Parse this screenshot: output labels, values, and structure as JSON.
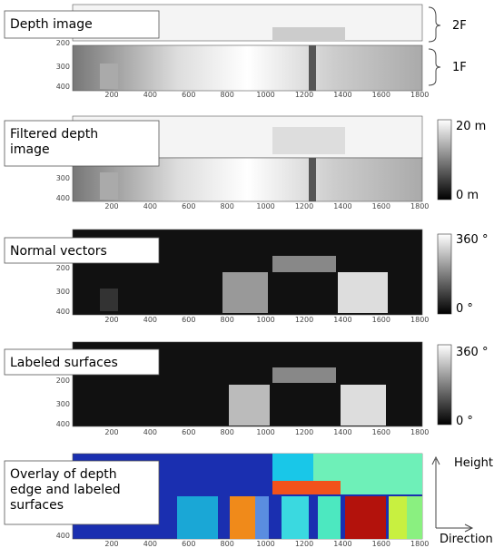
{
  "panels": [
    {
      "label": [
        "Depth image"
      ],
      "y_ticks": [
        "200",
        "300",
        "400"
      ]
    },
    {
      "label": [
        "Filtered depth",
        "image"
      ],
      "y_ticks": [
        "300",
        "400"
      ],
      "colorbar": {
        "top": "20 m",
        "bottom": "0 m"
      }
    },
    {
      "label": [
        "Normal vectors"
      ],
      "y_ticks": [
        "200",
        "300",
        "400"
      ],
      "colorbar": {
        "top": "360 °",
        "bottom": "0 °"
      }
    },
    {
      "label": [
        "Labeled surfaces"
      ],
      "y_ticks": [
        "200",
        "300",
        "400"
      ],
      "colorbar": {
        "top": "360 °",
        "bottom": "0 °"
      }
    },
    {
      "label": [
        "Overlay of depth",
        "edge and labeled",
        "surfaces"
      ],
      "y_ticks": [
        "400"
      ]
    }
  ],
  "x_ticks": [
    "200",
    "400",
    "600",
    "800",
    "1000",
    "1200",
    "1400",
    "1600",
    "1800"
  ],
  "floors": {
    "upper": "2F",
    "lower": "1F"
  },
  "axes": {
    "vertical": "Height",
    "horizontal": "Direction"
  }
}
